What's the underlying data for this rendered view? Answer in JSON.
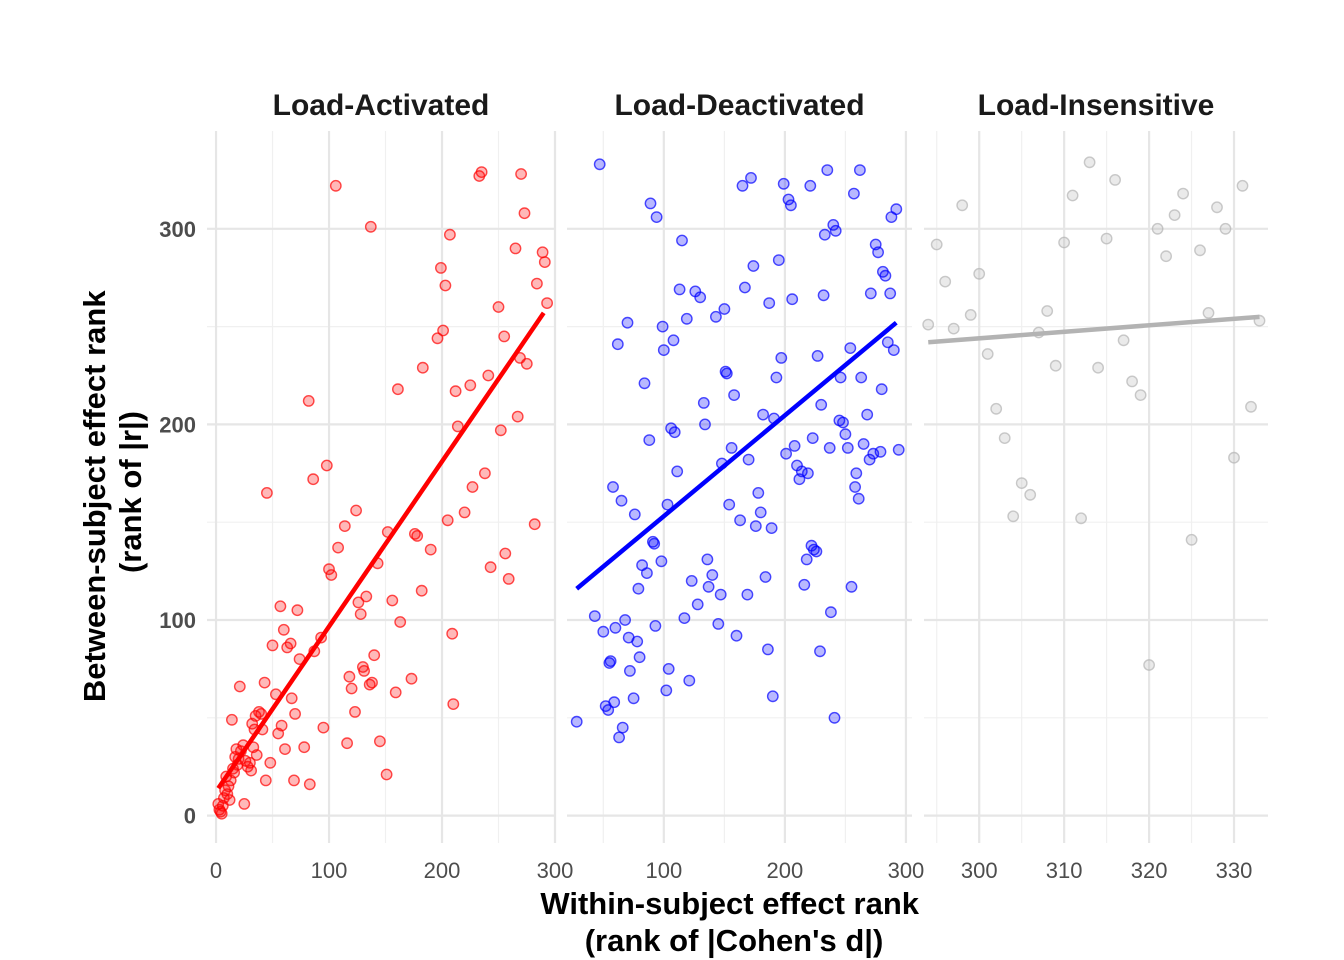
{
  "chart_data": {
    "type": "scatter",
    "ylabel": [
      "Between-subject effect rank",
      "(rank of |r|)"
    ],
    "xlabel": [
      "Within-subject effect rank",
      "(rank of |Cohen's d|)"
    ],
    "y_ticks": [
      0,
      100,
      200,
      300
    ],
    "grid": true,
    "legend": "none",
    "panels": [
      {
        "title": "Load-Activated",
        "color": "#ff0000",
        "xlim": [
          -8,
          300
        ],
        "x_ticks": [
          0,
          100,
          200,
          300
        ],
        "fit": {
          "x": [
            2,
            290
          ],
          "y": [
            14,
            257
          ]
        },
        "points": [
          [
            2,
            6
          ],
          [
            3,
            3
          ],
          [
            4,
            2
          ],
          [
            5,
            1
          ],
          [
            6,
            5
          ],
          [
            7,
            9
          ],
          [
            8,
            13
          ],
          [
            9,
            20
          ],
          [
            10,
            11
          ],
          [
            11,
            15
          ],
          [
            12,
            8
          ],
          [
            13,
            18
          ],
          [
            14,
            49
          ],
          [
            15,
            24
          ],
          [
            16,
            22
          ],
          [
            17,
            30
          ],
          [
            18,
            34
          ],
          [
            19,
            26
          ],
          [
            20,
            29
          ],
          [
            21,
            66
          ],
          [
            22,
            33
          ],
          [
            24,
            36
          ],
          [
            25,
            6
          ],
          [
            26,
            28
          ],
          [
            28,
            25
          ],
          [
            30,
            27
          ],
          [
            31,
            23
          ],
          [
            32,
            47
          ],
          [
            33,
            35
          ],
          [
            34,
            44
          ],
          [
            35,
            51
          ],
          [
            36,
            31
          ],
          [
            38,
            53
          ],
          [
            40,
            52
          ],
          [
            41,
            44
          ],
          [
            43,
            68
          ],
          [
            44,
            18
          ],
          [
            45,
            165
          ],
          [
            48,
            27
          ],
          [
            50,
            87
          ],
          [
            53,
            62
          ],
          [
            55,
            42
          ],
          [
            57,
            107
          ],
          [
            58,
            46
          ],
          [
            60,
            95
          ],
          [
            61,
            34
          ],
          [
            63,
            86
          ],
          [
            66,
            88
          ],
          [
            67,
            60
          ],
          [
            69,
            18
          ],
          [
            70,
            52
          ],
          [
            72,
            105
          ],
          [
            74,
            80
          ],
          [
            78,
            35
          ],
          [
            82,
            212
          ],
          [
            83,
            16
          ],
          [
            86,
            172
          ],
          [
            87,
            84
          ],
          [
            93,
            91
          ],
          [
            95,
            45
          ],
          [
            98,
            179
          ],
          [
            100,
            126
          ],
          [
            102,
            123
          ],
          [
            106,
            322
          ],
          [
            108,
            137
          ],
          [
            114,
            148
          ],
          [
            116,
            37
          ],
          [
            118,
            71
          ],
          [
            120,
            65
          ],
          [
            123,
            53
          ],
          [
            124,
            156
          ],
          [
            126,
            109
          ],
          [
            128,
            103
          ],
          [
            130,
            76
          ],
          [
            131,
            74
          ],
          [
            133,
            112
          ],
          [
            136,
            67
          ],
          [
            137,
            301
          ],
          [
            138,
            68
          ],
          [
            140,
            82
          ],
          [
            143,
            129
          ],
          [
            145,
            38
          ],
          [
            151,
            21
          ],
          [
            152,
            145
          ],
          [
            156,
            110
          ],
          [
            159,
            63
          ],
          [
            161,
            218
          ],
          [
            163,
            99
          ],
          [
            173,
            70
          ],
          [
            176,
            144
          ],
          [
            178,
            143
          ],
          [
            182,
            115
          ],
          [
            183,
            229
          ],
          [
            190,
            136
          ],
          [
            196,
            244
          ],
          [
            199,
            280
          ],
          [
            201,
            248
          ],
          [
            203,
            271
          ],
          [
            205,
            151
          ],
          [
            207,
            297
          ],
          [
            209,
            93
          ],
          [
            210,
            57
          ],
          [
            212,
            217
          ],
          [
            214,
            199
          ],
          [
            220,
            155
          ],
          [
            225,
            220
          ],
          [
            227,
            168
          ],
          [
            233,
            327
          ],
          [
            235,
            329
          ],
          [
            238,
            175
          ],
          [
            241,
            225
          ],
          [
            243,
            127
          ],
          [
            250,
            260
          ],
          [
            252,
            197
          ],
          [
            255,
            245
          ],
          [
            256,
            134
          ],
          [
            259,
            121
          ],
          [
            265,
            290
          ],
          [
            267,
            204
          ],
          [
            269,
            234
          ],
          [
            270,
            328
          ],
          [
            273,
            308
          ],
          [
            275,
            231
          ],
          [
            282,
            149
          ],
          [
            284,
            272
          ],
          [
            289,
            288
          ],
          [
            291,
            283
          ],
          [
            293,
            262
          ]
        ]
      },
      {
        "title": "Load-Deactivated",
        "color": "#0000ff",
        "xlim": [
          20,
          305
        ],
        "x_ticks": [
          100,
          200,
          300
        ],
        "fit": {
          "x": [
            28,
            292
          ],
          "y": [
            116,
            252
          ]
        },
        "points": [
          [
            28,
            48
          ],
          [
            43,
            102
          ],
          [
            47,
            333
          ],
          [
            50,
            94
          ],
          [
            52,
            56
          ],
          [
            54,
            54
          ],
          [
            55,
            78
          ],
          [
            56,
            79
          ],
          [
            58,
            168
          ],
          [
            59,
            58
          ],
          [
            60,
            96
          ],
          [
            62,
            241
          ],
          [
            63,
            40
          ],
          [
            65,
            161
          ],
          [
            66,
            45
          ],
          [
            68,
            100
          ],
          [
            70,
            252
          ],
          [
            71,
            91
          ],
          [
            72,
            74
          ],
          [
            75,
            60
          ],
          [
            76,
            154
          ],
          [
            78,
            89
          ],
          [
            79,
            116
          ],
          [
            80,
            81
          ],
          [
            82,
            128
          ],
          [
            84,
            221
          ],
          [
            86,
            124
          ],
          [
            88,
            192
          ],
          [
            89,
            313
          ],
          [
            91,
            140
          ],
          [
            92,
            139
          ],
          [
            93,
            97
          ],
          [
            94,
            306
          ],
          [
            98,
            130
          ],
          [
            99,
            250
          ],
          [
            100,
            238
          ],
          [
            102,
            64
          ],
          [
            103,
            159
          ],
          [
            104,
            75
          ],
          [
            106,
            198
          ],
          [
            108,
            243
          ],
          [
            109,
            196
          ],
          [
            111,
            176
          ],
          [
            113,
            269
          ],
          [
            115,
            294
          ],
          [
            117,
            101
          ],
          [
            119,
            254
          ],
          [
            121,
            69
          ],
          [
            123,
            120
          ],
          [
            126,
            268
          ],
          [
            128,
            108
          ],
          [
            130,
            265
          ],
          [
            133,
            211
          ],
          [
            134,
            200
          ],
          [
            136,
            131
          ],
          [
            137,
            117
          ],
          [
            140,
            123
          ],
          [
            143,
            255
          ],
          [
            145,
            98
          ],
          [
            147,
            113
          ],
          [
            148,
            180
          ],
          [
            150,
            259
          ],
          [
            151,
            227
          ],
          [
            152,
            226
          ],
          [
            154,
            159
          ],
          [
            156,
            188
          ],
          [
            158,
            215
          ],
          [
            160,
            92
          ],
          [
            163,
            151
          ],
          [
            165,
            322
          ],
          [
            167,
            270
          ],
          [
            169,
            113
          ],
          [
            170,
            182
          ],
          [
            172,
            326
          ],
          [
            174,
            281
          ],
          [
            176,
            148
          ],
          [
            178,
            165
          ],
          [
            180,
            155
          ],
          [
            182,
            205
          ],
          [
            184,
            122
          ],
          [
            186,
            85
          ],
          [
            187,
            262
          ],
          [
            189,
            147
          ],
          [
            190,
            61
          ],
          [
            191,
            203
          ],
          [
            193,
            224
          ],
          [
            195,
            284
          ],
          [
            197,
            234
          ],
          [
            199,
            323
          ],
          [
            201,
            185
          ],
          [
            203,
            315
          ],
          [
            205,
            312
          ],
          [
            206,
            264
          ],
          [
            208,
            189
          ],
          [
            210,
            179
          ],
          [
            212,
            172
          ],
          [
            214,
            176
          ],
          [
            216,
            118
          ],
          [
            218,
            131
          ],
          [
            219,
            175
          ],
          [
            221,
            322
          ],
          [
            222,
            138
          ],
          [
            223,
            193
          ],
          [
            224,
            136
          ],
          [
            226,
            135
          ],
          [
            227,
            235
          ],
          [
            229,
            84
          ],
          [
            230,
            210
          ],
          [
            232,
            266
          ],
          [
            233,
            297
          ],
          [
            235,
            330
          ],
          [
            237,
            188
          ],
          [
            238,
            104
          ],
          [
            240,
            302
          ],
          [
            241,
            50
          ],
          [
            242,
            299
          ],
          [
            245,
            202
          ],
          [
            246,
            224
          ],
          [
            248,
            201
          ],
          [
            250,
            195
          ],
          [
            252,
            188
          ],
          [
            254,
            239
          ],
          [
            255,
            117
          ],
          [
            257,
            318
          ],
          [
            258,
            168
          ],
          [
            259,
            175
          ],
          [
            261,
            162
          ],
          [
            262,
            330
          ],
          [
            263,
            224
          ],
          [
            265,
            190
          ],
          [
            268,
            205
          ],
          [
            270,
            182
          ],
          [
            271,
            267
          ],
          [
            273,
            185
          ],
          [
            275,
            292
          ],
          [
            277,
            288
          ],
          [
            279,
            186
          ],
          [
            280,
            218
          ],
          [
            281,
            278
          ],
          [
            283,
            276
          ],
          [
            285,
            242
          ],
          [
            287,
            267
          ],
          [
            288,
            306
          ],
          [
            290,
            238
          ],
          [
            292,
            310
          ],
          [
            294,
            187
          ]
        ]
      },
      {
        "title": "Load-Insensitive",
        "color": "#b3b3b3",
        "xlim": [
          293.5,
          334
        ],
        "x_ticks": [
          300,
          310,
          320,
          330
        ],
        "fit": {
          "x": [
            294,
            333
          ],
          "y": [
            242,
            255
          ]
        },
        "points": [
          [
            294,
            251
          ],
          [
            295,
            292
          ],
          [
            296,
            273
          ],
          [
            297,
            249
          ],
          [
            298,
            312
          ],
          [
            299,
            256
          ],
          [
            300,
            277
          ],
          [
            301,
            236
          ],
          [
            302,
            208
          ],
          [
            303,
            193
          ],
          [
            304,
            153
          ],
          [
            305,
            170
          ],
          [
            306,
            164
          ],
          [
            307,
            247
          ],
          [
            308,
            258
          ],
          [
            309,
            230
          ],
          [
            310,
            293
          ],
          [
            311,
            317
          ],
          [
            312,
            152
          ],
          [
            313,
            334
          ],
          [
            314,
            229
          ],
          [
            315,
            295
          ],
          [
            316,
            325
          ],
          [
            317,
            243
          ],
          [
            318,
            222
          ],
          [
            319,
            215
          ],
          [
            320,
            77
          ],
          [
            321,
            300
          ],
          [
            322,
            286
          ],
          [
            323,
            307
          ],
          [
            324,
            318
          ],
          [
            325,
            141
          ],
          [
            326,
            289
          ],
          [
            327,
            257
          ],
          [
            328,
            311
          ],
          [
            329,
            300
          ],
          [
            330,
            183
          ],
          [
            331,
            322
          ],
          [
            332,
            209
          ],
          [
            333,
            253
          ]
        ]
      }
    ]
  }
}
